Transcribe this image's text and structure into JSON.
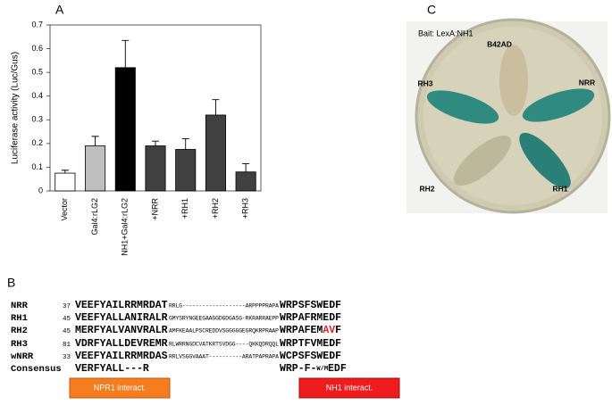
{
  "panels": [
    "A",
    "B",
    "C"
  ],
  "chart_data": {
    "type": "bar",
    "ylabel": "Luciferase activity (Luc/Gus)",
    "categories": [
      "Vector",
      "Gal4:rLG2",
      "NH1+Gal4:rLG2",
      "+NRR",
      "+RH1",
      "+RH2",
      "+RH3"
    ],
    "values": [
      0.075,
      0.19,
      0.52,
      0.19,
      0.175,
      0.32,
      0.08
    ],
    "errors": [
      0.012,
      0.04,
      0.115,
      0.02,
      0.045,
      0.065,
      0.035
    ],
    "colors": [
      "#ffffff",
      "#bfbfbf",
      "#000000",
      "#404040",
      "#404040",
      "#404040",
      "#404040"
    ],
    "ylim": [
      0,
      0.7
    ],
    "yticks": [
      0,
      0.1,
      0.2,
      0.3,
      0.4,
      0.5,
      0.6,
      0.7
    ]
  },
  "plate": {
    "bait": "Bait: LexA:NH1",
    "streaks": [
      "B42AD",
      "NRR",
      "RH1",
      "RH2",
      "RH3"
    ]
  },
  "alignment": {
    "rows": [
      {
        "name": "NRR",
        "start": 37,
        "parts": [
          "VEEFYAILRRMRDAT",
          "RRLG-------------------ARPPPPRAPA",
          "WRPSFSWEDF"
        ]
      },
      {
        "name": "RH1",
        "start": 45,
        "parts": [
          "VEEFYALLANIRALR",
          "GMYSRYNGEEGAAGGDGDGASG-RKRARRAEPP",
          "WRPAFRMEDF"
        ]
      },
      {
        "name": "RH2",
        "start": 45,
        "parts": [
          "MERFYALVANVRALR",
          "AMFKEAALPSCREDDVSGGGGGEGRQKRPRAAP",
          "WRPAFEM",
          "AV",
          "F"
        ]
      },
      {
        "name": "RH3",
        "start": 81,
        "parts": [
          "VDRFYALLDEVREMR",
          "RLWRRNGDCVATKRTSVDGG----QKKQDRQQL",
          "WRPTFVMEDF"
        ]
      },
      {
        "name": "wNRR",
        "start": 33,
        "parts": [
          "VEEFYAILRRMRDAS",
          "RRLVSGGVAAAT----------ARATPAPRAPA",
          "WCPSFSWEDF"
        ]
      }
    ],
    "consensus": {
      "name": "Consensus",
      "parts": [
        "VERFYALL---R",
        "WRP-F-",
        "W/M",
        "EDF"
      ]
    },
    "domains": [
      "NPR1 interact.",
      "NH1 interact."
    ]
  }
}
